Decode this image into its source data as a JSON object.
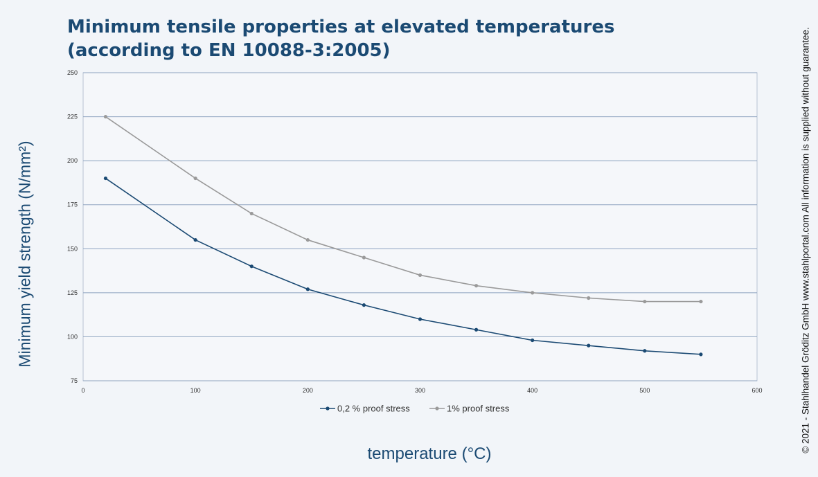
{
  "title": {
    "line1": "Minimum tensile properties at elevated temperatures",
    "line2": "(according to EN 10088-3:2005)"
  },
  "copyright": "© 2021 - Stahlhandel Gröditz GmbH www.stahlportal.com  All information is supplied without guarantee.",
  "chart_data": {
    "type": "line",
    "title": "Minimum tensile properties at elevated temperatures (according to EN 10088-3:2005)",
    "xlabel": "temperature (°C)",
    "ylabel": "Minimum yield strength (N/mm²)",
    "xlim": [
      0,
      600
    ],
    "ylim": [
      75,
      250
    ],
    "x_ticks": [
      0,
      100,
      200,
      300,
      400,
      500,
      600
    ],
    "y_ticks": [
      75,
      100,
      125,
      150,
      175,
      200,
      225,
      250
    ],
    "grid": true,
    "legend_position": "bottom",
    "series": [
      {
        "name": "0,2 % proof stress",
        "color": "#1b4a73",
        "x": [
          20,
          100,
          150,
          200,
          250,
          300,
          350,
          400,
          450,
          500,
          550
        ],
        "y": [
          190,
          155,
          140,
          127,
          118,
          110,
          104,
          98,
          95,
          92,
          90
        ]
      },
      {
        "name": "1% proof stress",
        "color": "#9a9a9a",
        "x": [
          20,
          100,
          150,
          200,
          250,
          300,
          350,
          400,
          450,
          500,
          550
        ],
        "y": [
          225,
          190,
          170,
          155,
          145,
          135,
          129,
          125,
          122,
          120,
          120
        ]
      }
    ]
  }
}
